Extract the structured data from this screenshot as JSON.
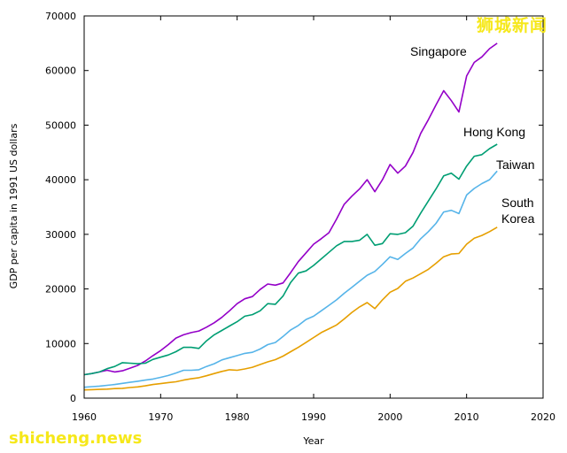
{
  "watermarks": {
    "top": "狮城新闻",
    "bottom": "shicheng.news"
  },
  "chart_data": {
    "type": "line",
    "title": "",
    "xlabel": "Year",
    "ylabel": "GDP per capita in 1991 US dollars",
    "xlim": [
      1960,
      2020
    ],
    "ylim": [
      0,
      70000
    ],
    "x_ticks": [
      1960,
      1970,
      1980,
      1990,
      2000,
      2010,
      2020
    ],
    "y_ticks": [
      0,
      10000,
      20000,
      30000,
      40000,
      50000,
      60000,
      70000
    ],
    "grid": false,
    "series": [
      {
        "name": "Singapore",
        "label": "Singapore",
        "color": "#9400c8",
        "points": [
          [
            1960,
            4300
          ],
          [
            1961,
            4500
          ],
          [
            1962,
            4800
          ],
          [
            1963,
            5100
          ],
          [
            1964,
            4800
          ],
          [
            1965,
            5000
          ],
          [
            1966,
            5500
          ],
          [
            1967,
            6000
          ],
          [
            1968,
            6800
          ],
          [
            1969,
            7800
          ],
          [
            1970,
            8700
          ],
          [
            1971,
            9800
          ],
          [
            1972,
            11000
          ],
          [
            1973,
            11600
          ],
          [
            1974,
            12000
          ],
          [
            1975,
            12300
          ],
          [
            1976,
            13000
          ],
          [
            1977,
            13800
          ],
          [
            1978,
            14800
          ],
          [
            1979,
            16000
          ],
          [
            1980,
            17300
          ],
          [
            1981,
            18200
          ],
          [
            1982,
            18600
          ],
          [
            1983,
            19900
          ],
          [
            1984,
            20900
          ],
          [
            1985,
            20700
          ],
          [
            1986,
            21100
          ],
          [
            1987,
            23000
          ],
          [
            1988,
            25000
          ],
          [
            1989,
            26600
          ],
          [
            1990,
            28200
          ],
          [
            1991,
            29200
          ],
          [
            1992,
            30300
          ],
          [
            1993,
            32800
          ],
          [
            1994,
            35500
          ],
          [
            1995,
            37000
          ],
          [
            1996,
            38300
          ],
          [
            1997,
            40000
          ],
          [
            1998,
            37800
          ],
          [
            1999,
            40000
          ],
          [
            2000,
            42800
          ],
          [
            2001,
            41200
          ],
          [
            2002,
            42500
          ],
          [
            2003,
            45000
          ],
          [
            2004,
            48500
          ],
          [
            2005,
            51000
          ],
          [
            2006,
            53700
          ],
          [
            2007,
            56300
          ],
          [
            2008,
            54500
          ],
          [
            2009,
            52400
          ],
          [
            2010,
            59000
          ],
          [
            2011,
            61500
          ],
          [
            2012,
            62500
          ],
          [
            2013,
            64000
          ],
          [
            2014,
            65000
          ]
        ]
      },
      {
        "name": "Hong Kong",
        "label": "Hong Kong",
        "color": "#009e73",
        "points": [
          [
            1960,
            4300
          ],
          [
            1961,
            4500
          ],
          [
            1962,
            4800
          ],
          [
            1963,
            5400
          ],
          [
            1964,
            5800
          ],
          [
            1965,
            6500
          ],
          [
            1966,
            6400
          ],
          [
            1967,
            6300
          ],
          [
            1968,
            6400
          ],
          [
            1969,
            7100
          ],
          [
            1970,
            7500
          ],
          [
            1971,
            7900
          ],
          [
            1972,
            8500
          ],
          [
            1973,
            9300
          ],
          [
            1974,
            9300
          ],
          [
            1975,
            9100
          ],
          [
            1976,
            10500
          ],
          [
            1977,
            11600
          ],
          [
            1978,
            12400
          ],
          [
            1979,
            13200
          ],
          [
            1980,
            14000
          ],
          [
            1981,
            15000
          ],
          [
            1982,
            15300
          ],
          [
            1983,
            16000
          ],
          [
            1984,
            17300
          ],
          [
            1985,
            17200
          ],
          [
            1986,
            18700
          ],
          [
            1987,
            21200
          ],
          [
            1988,
            22900
          ],
          [
            1989,
            23300
          ],
          [
            1990,
            24300
          ],
          [
            1991,
            25500
          ],
          [
            1992,
            26700
          ],
          [
            1993,
            27900
          ],
          [
            1994,
            28700
          ],
          [
            1995,
            28700
          ],
          [
            1996,
            28900
          ],
          [
            1997,
            30000
          ],
          [
            1998,
            28000
          ],
          [
            1999,
            28300
          ],
          [
            2000,
            30100
          ],
          [
            2001,
            30000
          ],
          [
            2002,
            30300
          ],
          [
            2003,
            31500
          ],
          [
            2004,
            33900
          ],
          [
            2005,
            36100
          ],
          [
            2006,
            38300
          ],
          [
            2007,
            40700
          ],
          [
            2008,
            41200
          ],
          [
            2009,
            40100
          ],
          [
            2010,
            42500
          ],
          [
            2011,
            44300
          ],
          [
            2012,
            44600
          ],
          [
            2013,
            45700
          ],
          [
            2014,
            46500
          ]
        ]
      },
      {
        "name": "Taiwan",
        "label": "Taiwan",
        "color": "#56b4e9",
        "points": [
          [
            1960,
            2000
          ],
          [
            1961,
            2100
          ],
          [
            1962,
            2200
          ],
          [
            1963,
            2350
          ],
          [
            1964,
            2500
          ],
          [
            1965,
            2700
          ],
          [
            1966,
            2900
          ],
          [
            1967,
            3100
          ],
          [
            1968,
            3300
          ],
          [
            1969,
            3500
          ],
          [
            1970,
            3800
          ],
          [
            1971,
            4150
          ],
          [
            1972,
            4600
          ],
          [
            1973,
            5100
          ],
          [
            1974,
            5100
          ],
          [
            1975,
            5200
          ],
          [
            1976,
            5800
          ],
          [
            1977,
            6300
          ],
          [
            1978,
            7000
          ],
          [
            1979,
            7400
          ],
          [
            1980,
            7800
          ],
          [
            1981,
            8200
          ],
          [
            1982,
            8400
          ],
          [
            1983,
            9000
          ],
          [
            1984,
            9800
          ],
          [
            1985,
            10200
          ],
          [
            1986,
            11300
          ],
          [
            1987,
            12500
          ],
          [
            1988,
            13300
          ],
          [
            1989,
            14400
          ],
          [
            1990,
            15000
          ],
          [
            1991,
            16000
          ],
          [
            1992,
            17000
          ],
          [
            1993,
            18000
          ],
          [
            1994,
            19200
          ],
          [
            1995,
            20300
          ],
          [
            1996,
            21400
          ],
          [
            1997,
            22500
          ],
          [
            1998,
            23200
          ],
          [
            1999,
            24500
          ],
          [
            2000,
            25900
          ],
          [
            2001,
            25400
          ],
          [
            2002,
            26500
          ],
          [
            2003,
            27500
          ],
          [
            2004,
            29200
          ],
          [
            2005,
            30500
          ],
          [
            2006,
            32000
          ],
          [
            2007,
            34100
          ],
          [
            2008,
            34400
          ],
          [
            2009,
            33800
          ],
          [
            2010,
            37200
          ],
          [
            2011,
            38400
          ],
          [
            2012,
            39300
          ],
          [
            2013,
            40000
          ],
          [
            2014,
            41600
          ]
        ]
      },
      {
        "name": "South Korea",
        "label_lines": [
          "South",
          "Korea"
        ],
        "color": "#e69f00",
        "points": [
          [
            1960,
            1500
          ],
          [
            1961,
            1550
          ],
          [
            1962,
            1600
          ],
          [
            1963,
            1650
          ],
          [
            1964,
            1750
          ],
          [
            1965,
            1800
          ],
          [
            1966,
            1950
          ],
          [
            1967,
            2050
          ],
          [
            1968,
            2250
          ],
          [
            1969,
            2500
          ],
          [
            1970,
            2650
          ],
          [
            1971,
            2850
          ],
          [
            1972,
            3000
          ],
          [
            1973,
            3300
          ],
          [
            1974,
            3550
          ],
          [
            1975,
            3750
          ],
          [
            1976,
            4100
          ],
          [
            1977,
            4500
          ],
          [
            1978,
            4900
          ],
          [
            1979,
            5200
          ],
          [
            1980,
            5100
          ],
          [
            1981,
            5350
          ],
          [
            1982,
            5650
          ],
          [
            1983,
            6150
          ],
          [
            1984,
            6650
          ],
          [
            1985,
            7050
          ],
          [
            1986,
            7700
          ],
          [
            1987,
            8500
          ],
          [
            1988,
            9300
          ],
          [
            1989,
            10200
          ],
          [
            1990,
            11100
          ],
          [
            1991,
            12000
          ],
          [
            1992,
            12700
          ],
          [
            1993,
            13400
          ],
          [
            1994,
            14500
          ],
          [
            1995,
            15700
          ],
          [
            1996,
            16700
          ],
          [
            1997,
            17500
          ],
          [
            1998,
            16400
          ],
          [
            1999,
            18000
          ],
          [
            2000,
            19400
          ],
          [
            2001,
            20100
          ],
          [
            2002,
            21400
          ],
          [
            2003,
            22000
          ],
          [
            2004,
            22800
          ],
          [
            2005,
            23600
          ],
          [
            2006,
            24700
          ],
          [
            2007,
            25900
          ],
          [
            2008,
            26400
          ],
          [
            2009,
            26500
          ],
          [
            2010,
            28200
          ],
          [
            2011,
            29300
          ],
          [
            2012,
            29800
          ],
          [
            2013,
            30500
          ],
          [
            2014,
            31300
          ]
        ]
      }
    ]
  }
}
